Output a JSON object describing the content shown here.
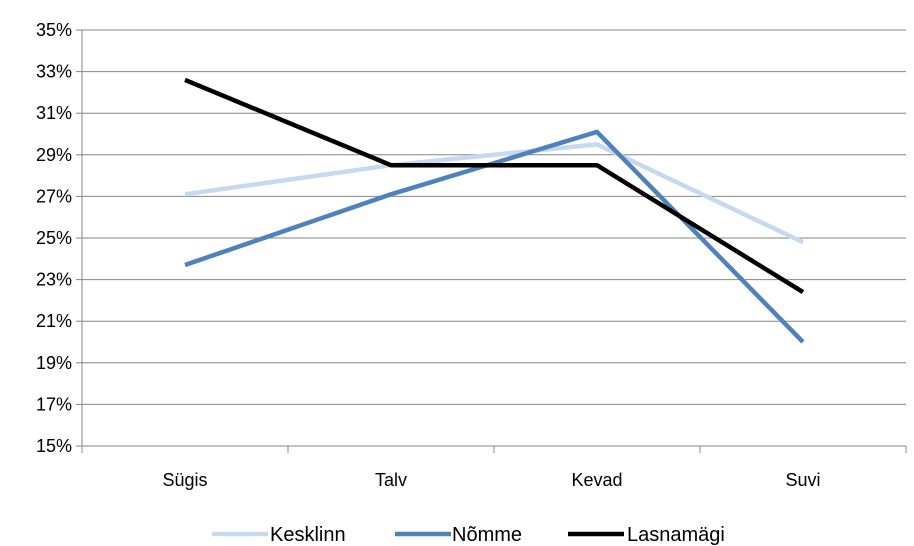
{
  "chart_data": {
    "type": "line",
    "categories": [
      "Sügis",
      "Talv",
      "Kevad",
      "Suvi"
    ],
    "series": [
      {
        "name": "Kesklinn",
        "values": [
          27.1,
          28.5,
          29.5,
          24.8
        ],
        "color": "#c6d9f1"
      },
      {
        "name": "Nõmme",
        "values": [
          23.7,
          27.1,
          30.1,
          20.0
        ],
        "color": "#4f81bd"
      },
      {
        "name": "Lasnamägi",
        "values": [
          32.6,
          28.5,
          28.5,
          22.4
        ],
        "color": "#000000"
      }
    ],
    "yticks": [
      "15%",
      "17%",
      "19%",
      "21%",
      "23%",
      "25%",
      "27%",
      "29%",
      "31%",
      "33%",
      "35%"
    ],
    "ylim": [
      15,
      35
    ],
    "y_unit": "%",
    "grid": true,
    "legend_position": "bottom"
  }
}
